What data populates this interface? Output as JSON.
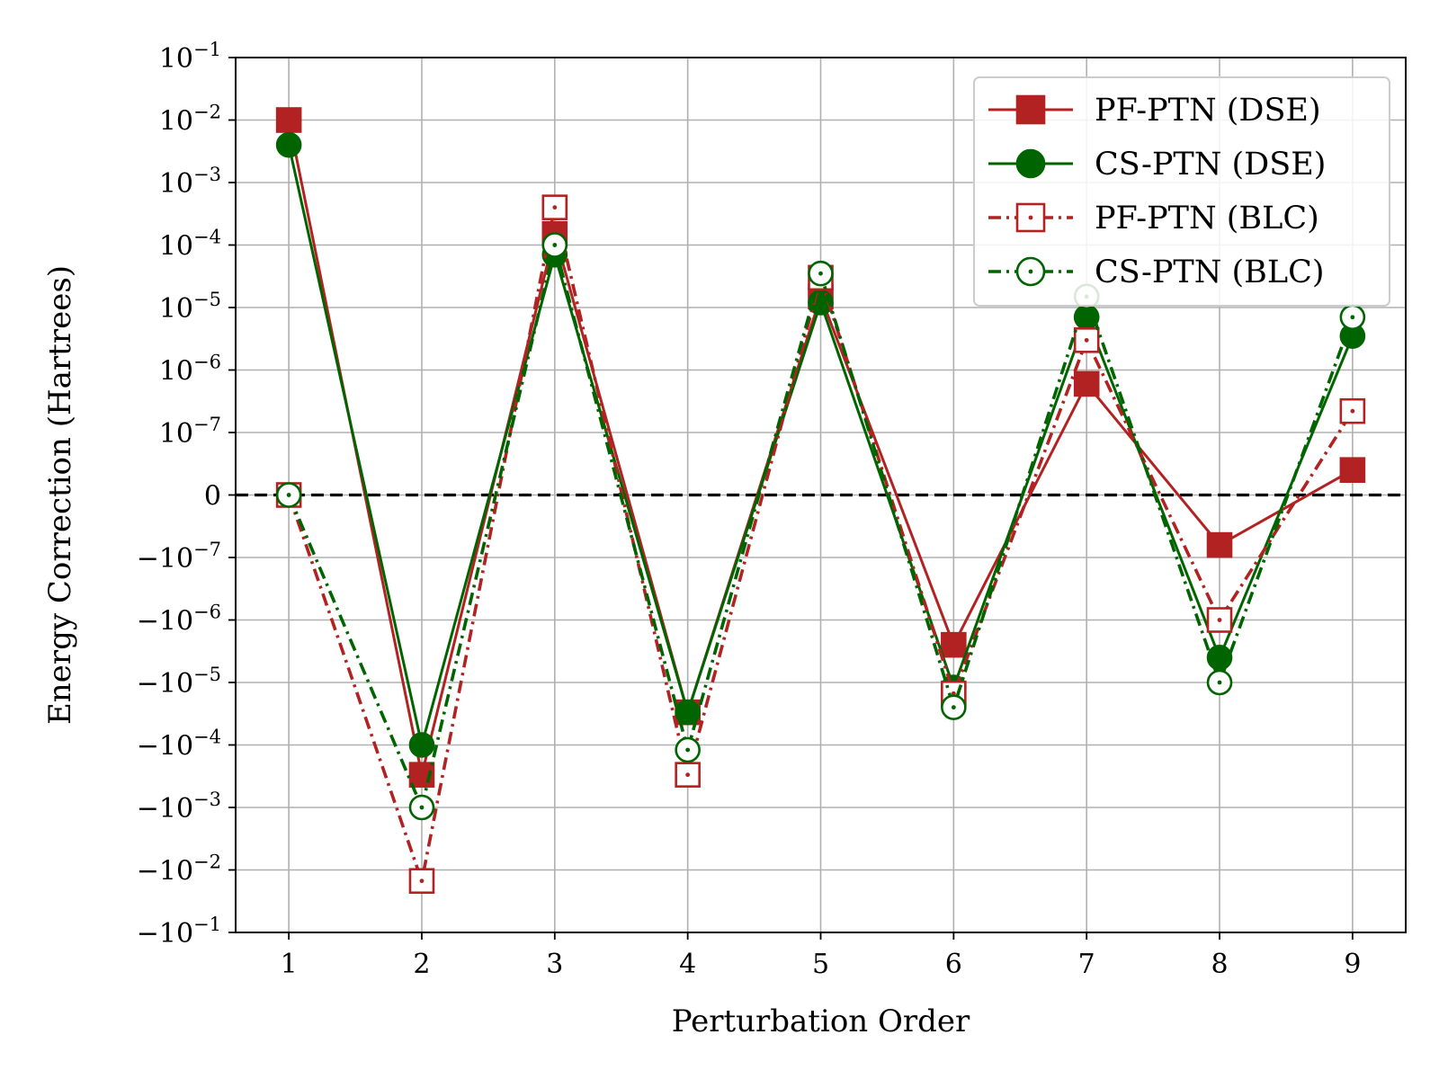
{
  "chart_data": {
    "type": "line",
    "xlabel": "Perturbation Order",
    "ylabel": "Energy Correction (Hartrees)",
    "yscale": "symlog",
    "linthresh": 1e-07,
    "ylim": [
      -0.1,
      0.1
    ],
    "xlim": [
      0.6,
      9.4
    ],
    "grid": true,
    "legend_position": "top-right",
    "x": [
      1,
      2,
      3,
      4,
      5,
      6,
      7,
      8,
      9
    ],
    "x_tick_labels": [
      "1",
      "2",
      "3",
      "4",
      "5",
      "6",
      "7",
      "8",
      "9"
    ],
    "y_ticks": [
      {
        "value": 0.1,
        "base": "10",
        "exp": "−1"
      },
      {
        "value": 0.01,
        "base": "10",
        "exp": "−2"
      },
      {
        "value": 0.001,
        "base": "10",
        "exp": "−3"
      },
      {
        "value": 0.0001,
        "base": "10",
        "exp": "−4"
      },
      {
        "value": 1e-05,
        "base": "10",
        "exp": "−5"
      },
      {
        "value": 1e-06,
        "base": "10",
        "exp": "−6"
      },
      {
        "value": 1e-07,
        "base": "10",
        "exp": "−7"
      },
      {
        "value": 0,
        "base": "0",
        "exp": ""
      },
      {
        "value": -1e-07,
        "base": "−10",
        "exp": "−7"
      },
      {
        "value": -1e-06,
        "base": "−10",
        "exp": "−6"
      },
      {
        "value": -1e-05,
        "base": "−10",
        "exp": "−5"
      },
      {
        "value": -0.0001,
        "base": "−10",
        "exp": "−4"
      },
      {
        "value": -0.001,
        "base": "−10",
        "exp": "−3"
      },
      {
        "value": -0.01,
        "base": "−10",
        "exp": "−2"
      },
      {
        "value": -0.1,
        "base": "−10",
        "exp": "−1"
      }
    ],
    "reference_line": {
      "y": 0,
      "style": "dashed",
      "color": "#000000"
    },
    "series": [
      {
        "name": "PF-PTN (DSE)",
        "color": "#b22222",
        "line_style": "solid",
        "marker": "square",
        "marker_fill": "filled",
        "values": [
          0.01,
          -0.0003,
          0.00015,
          -3e-05,
          1.5e-05,
          -2.5e-06,
          6e-07,
          -8e-08,
          4e-08
        ]
      },
      {
        "name": "CS-PTN (DSE)",
        "color": "#006400",
        "line_style": "solid",
        "marker": "circle",
        "marker_fill": "filled",
        "values": [
          0.004,
          -0.0001,
          7e-05,
          -3e-05,
          1.2e-05,
          -1.2e-05,
          7e-06,
          -4e-06,
          3.5e-06
        ]
      },
      {
        "name": "PF-PTN (BLC)",
        "color": "#b22222",
        "line_style": "dashdot",
        "marker": "square",
        "marker_fill": "open",
        "values": [
          0,
          -0.015,
          0.0004,
          -0.0003,
          3e-05,
          -1.5e-05,
          3e-06,
          -1e-06,
          2.2e-07
        ]
      },
      {
        "name": "CS-PTN (BLC)",
        "color": "#006400",
        "line_style": "dashdot",
        "marker": "circle",
        "marker_fill": "open",
        "values": [
          0,
          -0.001,
          0.0001,
          -0.00012,
          3.5e-05,
          -2.5e-05,
          1.5e-05,
          -1e-05,
          7e-06
        ]
      }
    ]
  }
}
